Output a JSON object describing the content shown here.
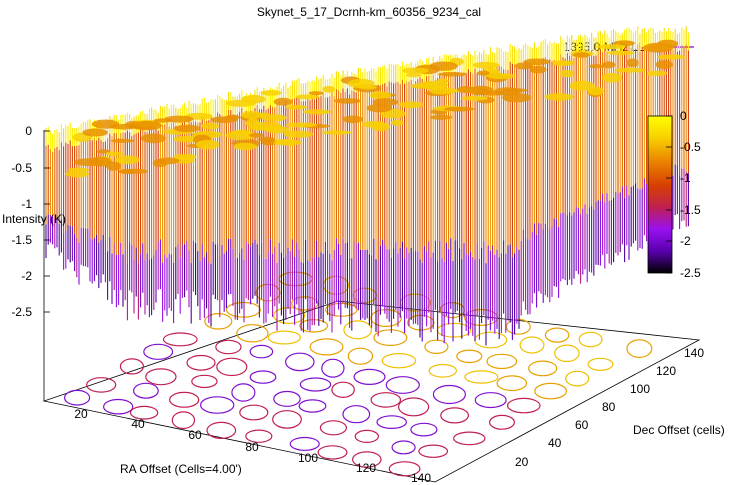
{
  "chart_data": {
    "type": "surface3d",
    "title": "Skynet_5_17_Dcrnh-km_60356_9234_cal",
    "legend": {
      "label": "1395.0 MHz LL",
      "color": "#9400d3",
      "position": "top-right"
    },
    "xlabel": "RA Offset (Cells=4.00')",
    "ylabel": "Dec Offset (cells)",
    "zlabel": "Intensity (K)",
    "x_ticks": [
      "20",
      "40",
      "60",
      "80",
      "100",
      "120",
      "140"
    ],
    "y_ticks": [
      "20",
      "40",
      "60",
      "80",
      "100",
      "120",
      "140"
    ],
    "z_ticks": [
      "0",
      "-0.5",
      "-1",
      "-1.5",
      "-2",
      "-2.5"
    ],
    "xlim": [
      0,
      150
    ],
    "ylim": [
      0,
      150
    ],
    "zlim": [
      -2.8,
      0
    ],
    "colorbar": {
      "ticks": [
        "0",
        "-0.5",
        "-1",
        "-1.5",
        "-2",
        "-2.5"
      ],
      "range": [
        -2.5,
        0
      ],
      "colors": [
        "#000000",
        "#5a00b0",
        "#9a10f0",
        "#c02050",
        "#d84000",
        "#ec8800",
        "#f8d000",
        "#ffff00"
      ]
    },
    "surface_note": "Calibrated intensity map: mostly between -0.5 K and -1.2 K, dropping to about -2.5 K at low RA / low Dec edge; rises toward 0 K at high Dec."
  }
}
